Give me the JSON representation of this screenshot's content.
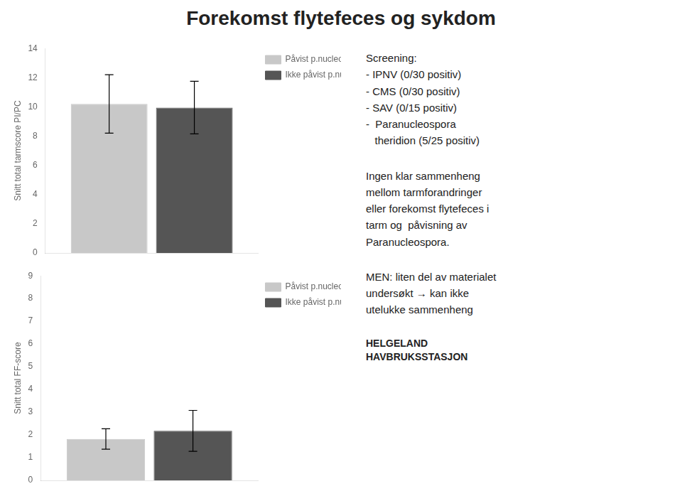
{
  "title": "Forekomst flytefeces og sykdom",
  "annotations": [
    "Screening:\n- IPNV (0/30 positiv)\n- CMS (0/30 positiv)\n- SAV (0/15 positiv)\n-  Paranucleospora\n   theridion (5/25 positiv)",
    "Ingen klar sammenheng\nmellom tarmforandringer\neller forekomst flytefeces i\ntarm og  påvisning av\nParanucleospora.",
    "MEN: liten del av materialet\nundersøkt → kan ikke\nutelukke sammenheng",
    "HELGELAND\nHAVBRUKSSTASJON"
  ],
  "chart_data": [
    {
      "type": "bar",
      "ylabel": "Snitt total tarmscore PI/PC",
      "categories": [
        null
      ],
      "series": [
        {
          "name": "Påvist p.nucleospora",
          "color": "#c8c8c8",
          "values": [
            10.2
          ],
          "errors": [
            2.0
          ]
        },
        {
          "name": "Ikke påvist p.nucleospora",
          "color": "#555555",
          "values": [
            9.95
          ],
          "errors": [
            1.8
          ]
        }
      ],
      "ylim": [
        0,
        14
      ],
      "yticks": [
        0,
        2,
        4,
        6,
        8,
        10,
        12,
        14
      ],
      "grid": false,
      "legend": "upper right",
      "tick_labels": "y"
    },
    {
      "type": "bar",
      "ylabel": "Snitt total FF-score",
      "categories": [
        null
      ],
      "series": [
        {
          "name": "Påvist p.nucleospora",
          "color": "#c8c8c8",
          "values": [
            1.82
          ],
          "errors": [
            0.45
          ]
        },
        {
          "name": "Ikke påvist p.nucleospora",
          "color": "#555555",
          "values": [
            2.18
          ],
          "errors": [
            0.9
          ]
        }
      ],
      "ylim": [
        0,
        9
      ],
      "yticks": [
        0,
        1,
        2,
        3,
        4,
        5,
        6,
        7,
        8,
        9
      ],
      "grid": false,
      "legend": "upper right",
      "tick_labels": "y"
    }
  ]
}
